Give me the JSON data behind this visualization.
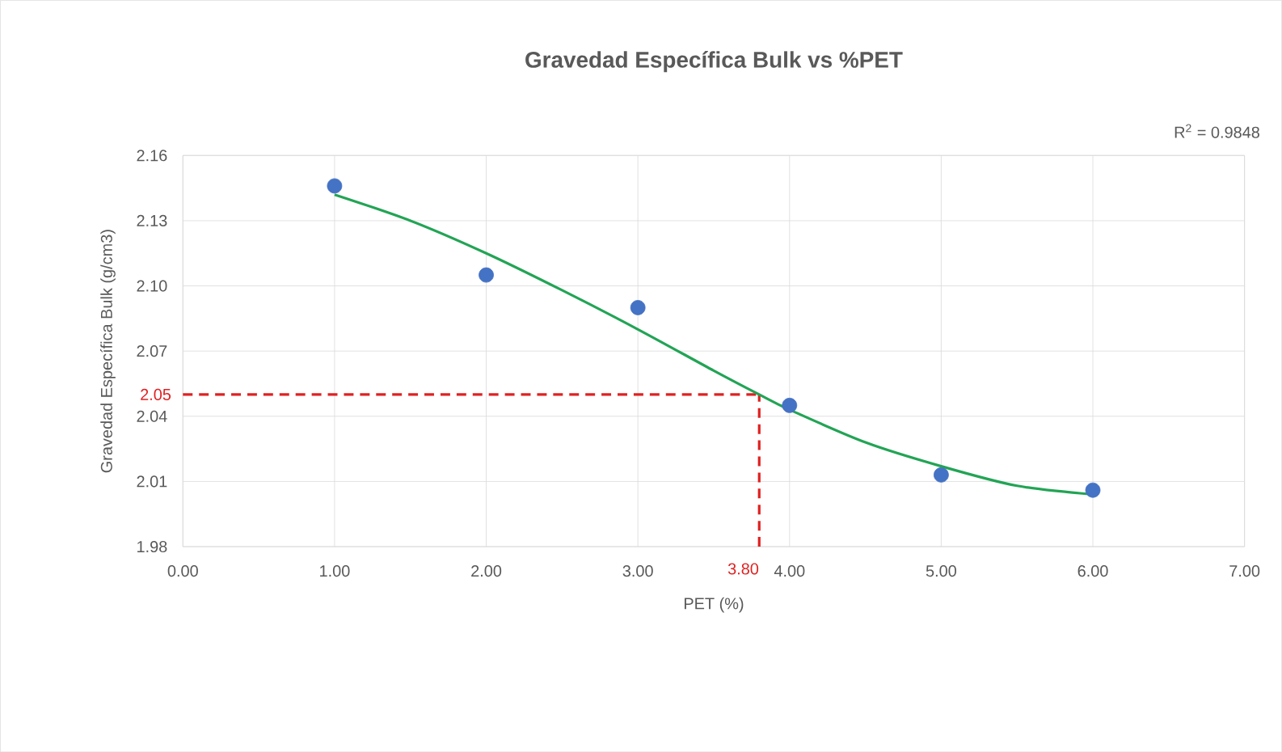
{
  "chart_data": {
    "type": "scatter",
    "title": "Gravedad Específica Bulk vs %PET",
    "xlabel": "PET (%)",
    "ylabel": "Gravedad  Específica Bulk (g/cm3)",
    "series": [
      {
        "color": "#4472c4",
        "marker": "circle",
        "x": [
          1,
          2,
          3,
          4,
          5,
          6
        ],
        "values": [
          2.146,
          2.105,
          2.09,
          2.045,
          2.013,
          2.006
        ]
      },
      {
        "type": "line",
        "color": "#22a455",
        "marker": "none",
        "line_style": "solid",
        "x": [
          1,
          1.5,
          2,
          2.5,
          3,
          3.5,
          3.8,
          4,
          4.5,
          5,
          5.5,
          6
        ],
        "values": [
          2.142,
          2.13,
          2.115,
          2.098,
          2.08,
          2.061,
          2.05,
          2.043,
          2.028,
          2.017,
          2.008,
          2.004
        ]
      }
    ],
    "xlim": [
      0,
      7
    ],
    "ylim": [
      1.98,
      2.16
    ],
    "xticks": [
      {
        "value": 0,
        "label": "0.00"
      },
      {
        "value": 1,
        "label": "1.00"
      },
      {
        "value": 2,
        "label": "2.00"
      },
      {
        "value": 3,
        "label": "3.00"
      },
      {
        "value": 4,
        "label": "4.00"
      },
      {
        "value": 5,
        "label": "5.00"
      },
      {
        "value": 6,
        "label": "6.00"
      },
      {
        "value": 7,
        "label": "7.00"
      }
    ],
    "yticks": [
      {
        "value": 1.98,
        "label": "1.98"
      },
      {
        "value": 2.01,
        "label": "2.01"
      },
      {
        "value": 2.04,
        "label": "2.04"
      },
      {
        "value": 2.07,
        "label": "2.07"
      },
      {
        "value": 2.1,
        "label": "2.10"
      },
      {
        "value": 2.13,
        "label": "2.13"
      },
      {
        "value": 2.16,
        "label": "2.16"
      }
    ],
    "ref_lines": [
      {
        "axis": "y",
        "value": 2.05,
        "label": "2.05",
        "color": "#e02020",
        "line_style": "dashed"
      },
      {
        "axis": "x",
        "value": 3.8,
        "label": "3.80",
        "color": "#e02020",
        "line_style": "dashed"
      }
    ],
    "annotations": [
      "R$^{2}$ = 0.9848"
    ],
    "grid": true
  }
}
